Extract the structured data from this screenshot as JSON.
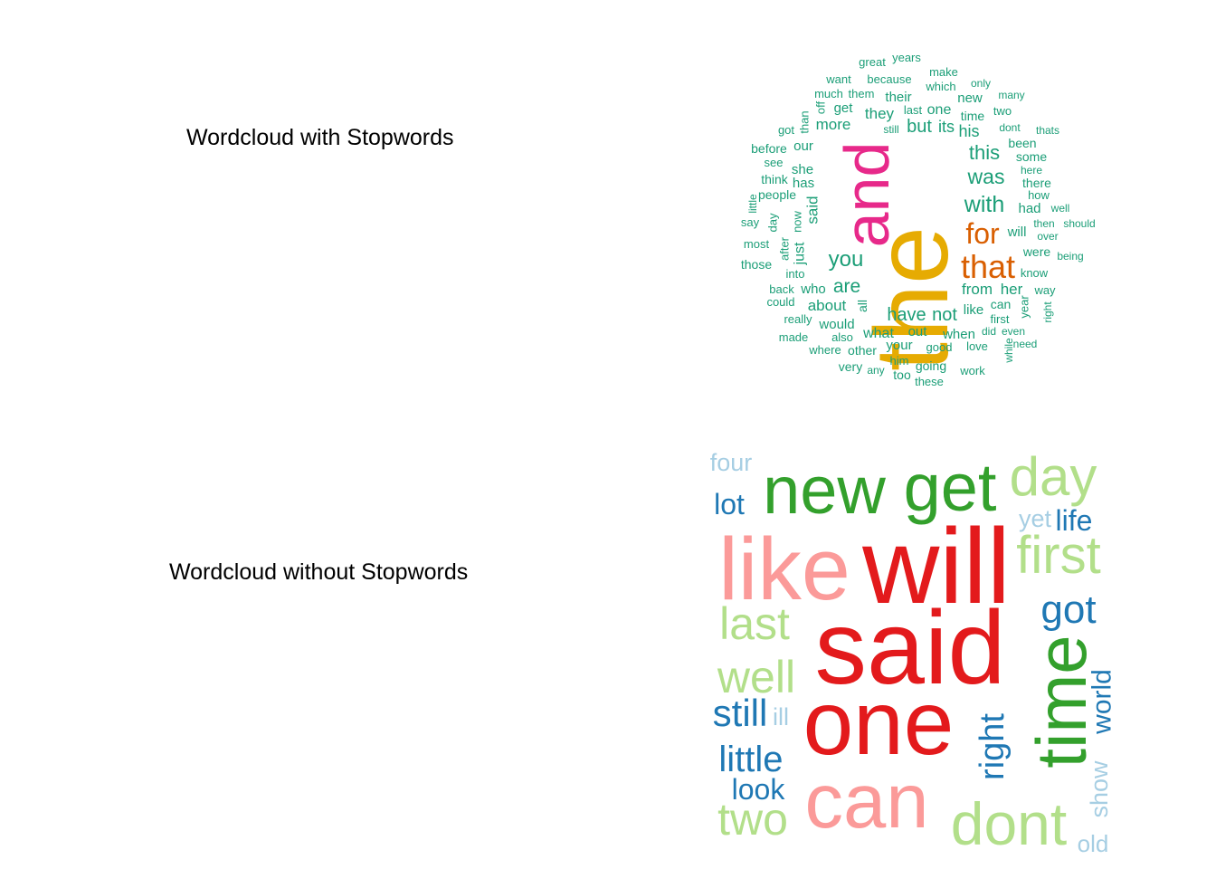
{
  "panels": [
    {
      "title": "Wordcloud with Stopwords",
      "words": [
        {
          "text": "the",
          "color": "#E6AB02"
        },
        {
          "text": "and",
          "color": "#E7298A"
        },
        {
          "text": "that",
          "color": "#D95F02"
        },
        {
          "text": "for",
          "color": "#D95F02"
        },
        {
          "text": "with",
          "color": "#1B9E77"
        },
        {
          "text": "was",
          "color": "#1B9E77"
        },
        {
          "text": "this",
          "color": "#1B9E77"
        },
        {
          "text": "you",
          "color": "#1B9E77"
        },
        {
          "text": "are",
          "color": "#1B9E77"
        },
        {
          "text": "have",
          "color": "#1B9E77"
        },
        {
          "text": "not",
          "color": "#1B9E77"
        },
        {
          "text": "from",
          "color": "#1B9E77"
        },
        {
          "text": "her",
          "color": "#1B9E77"
        },
        {
          "text": "but",
          "color": "#1B9E77"
        },
        {
          "text": "its",
          "color": "#1B9E77"
        },
        {
          "text": "his",
          "color": "#1B9E77"
        },
        {
          "text": "more",
          "color": "#1B9E77"
        },
        {
          "text": "they",
          "color": "#1B9E77"
        },
        {
          "text": "one",
          "color": "#1B9E77"
        },
        {
          "text": "will",
          "color": "#1B9E77"
        },
        {
          "text": "what",
          "color": "#1B9E77"
        },
        {
          "text": "out",
          "color": "#1B9E77"
        },
        {
          "text": "when",
          "color": "#1B9E77"
        },
        {
          "text": "about",
          "color": "#1B9E77"
        },
        {
          "text": "would",
          "color": "#1B9E77"
        },
        {
          "text": "your",
          "color": "#1B9E77"
        },
        {
          "text": "who",
          "color": "#1B9E77"
        },
        {
          "text": "she",
          "color": "#1B9E77"
        },
        {
          "text": "has",
          "color": "#1B9E77"
        },
        {
          "text": "our",
          "color": "#1B9E77"
        },
        {
          "text": "get",
          "color": "#1B9E77"
        },
        {
          "text": "their",
          "color": "#1B9E77"
        },
        {
          "text": "them",
          "color": "#1B9E77"
        },
        {
          "text": "some",
          "color": "#1B9E77"
        },
        {
          "text": "there",
          "color": "#1B9E77"
        },
        {
          "text": "been",
          "color": "#1B9E77"
        },
        {
          "text": "had",
          "color": "#1B9E77"
        },
        {
          "text": "were",
          "color": "#1B9E77"
        },
        {
          "text": "can",
          "color": "#1B9E77"
        },
        {
          "text": "like",
          "color": "#1B9E77"
        },
        {
          "text": "time",
          "color": "#1B9E77"
        },
        {
          "text": "new",
          "color": "#1B9E77"
        },
        {
          "text": "which",
          "color": "#1B9E77"
        },
        {
          "text": "make",
          "color": "#1B9E77"
        },
        {
          "text": "because",
          "color": "#1B9E77"
        },
        {
          "text": "great",
          "color": "#1B9E77"
        },
        {
          "text": "years",
          "color": "#1B9E77"
        },
        {
          "text": "only",
          "color": "#1B9E77"
        },
        {
          "text": "many",
          "color": "#1B9E77"
        },
        {
          "text": "two",
          "color": "#1B9E77"
        },
        {
          "text": "dont",
          "color": "#1B9E77"
        },
        {
          "text": "thats",
          "color": "#1B9E77"
        },
        {
          "text": "here",
          "color": "#1B9E77"
        },
        {
          "text": "how",
          "color": "#1B9E77"
        },
        {
          "text": "well",
          "color": "#1B9E77"
        },
        {
          "text": "then",
          "color": "#1B9E77"
        },
        {
          "text": "should",
          "color": "#1B9E77"
        },
        {
          "text": "over",
          "color": "#1B9E77"
        },
        {
          "text": "being",
          "color": "#1B9E77"
        },
        {
          "text": "know",
          "color": "#1B9E77"
        },
        {
          "text": "way",
          "color": "#1B9E77"
        },
        {
          "text": "first",
          "color": "#1B9E77"
        },
        {
          "text": "even",
          "color": "#1B9E77"
        },
        {
          "text": "did",
          "color": "#1B9E77"
        },
        {
          "text": "need",
          "color": "#1B9E77"
        },
        {
          "text": "love",
          "color": "#1B9E77"
        },
        {
          "text": "good",
          "color": "#1B9E77"
        },
        {
          "text": "going",
          "color": "#1B9E77"
        },
        {
          "text": "work",
          "color": "#1B9E77"
        },
        {
          "text": "these",
          "color": "#1B9E77"
        },
        {
          "text": "too",
          "color": "#1B9E77"
        },
        {
          "text": "him",
          "color": "#1B9E77"
        },
        {
          "text": "any",
          "color": "#1B9E77"
        },
        {
          "text": "very",
          "color": "#1B9E77"
        },
        {
          "text": "other",
          "color": "#1B9E77"
        },
        {
          "text": "where",
          "color": "#1B9E77"
        },
        {
          "text": "also",
          "color": "#1B9E77"
        },
        {
          "text": "made",
          "color": "#1B9E77"
        },
        {
          "text": "really",
          "color": "#1B9E77"
        },
        {
          "text": "could",
          "color": "#1B9E77"
        },
        {
          "text": "back",
          "color": "#1B9E77"
        },
        {
          "text": "into",
          "color": "#1B9E77"
        },
        {
          "text": "those",
          "color": "#1B9E77"
        },
        {
          "text": "most",
          "color": "#1B9E77"
        },
        {
          "text": "say",
          "color": "#1B9E77"
        },
        {
          "text": "people",
          "color": "#1B9E77"
        },
        {
          "text": "think",
          "color": "#1B9E77"
        },
        {
          "text": "see",
          "color": "#1B9E77"
        },
        {
          "text": "before",
          "color": "#1B9E77"
        },
        {
          "text": "got",
          "color": "#1B9E77"
        },
        {
          "text": "much",
          "color": "#1B9E77"
        },
        {
          "text": "want",
          "color": "#1B9E77"
        },
        {
          "text": "last",
          "color": "#1B9E77"
        },
        {
          "text": "still",
          "color": "#1B9E77"
        },
        {
          "text": "said",
          "color": "#1B9E77"
        },
        {
          "text": "just",
          "color": "#1B9E77"
        },
        {
          "text": "now",
          "color": "#1B9E77"
        },
        {
          "text": "day",
          "color": "#1B9E77"
        },
        {
          "text": "after",
          "color": "#1B9E77"
        },
        {
          "text": "little",
          "color": "#1B9E77"
        },
        {
          "text": "than",
          "color": "#1B9E77"
        },
        {
          "text": "off",
          "color": "#1B9E77"
        },
        {
          "text": "all",
          "color": "#1B9E77"
        },
        {
          "text": "year",
          "color": "#1B9E77"
        },
        {
          "text": "right",
          "color": "#1B9E77"
        },
        {
          "text": "while",
          "color": "#1B9E77"
        }
      ]
    },
    {
      "title": "Wordcloud without Stopwords",
      "words": [
        {
          "text": "said",
          "color": "#E31A1C"
        },
        {
          "text": "will",
          "color": "#E31A1C"
        },
        {
          "text": "one",
          "color": "#E31A1C"
        },
        {
          "text": "like",
          "color": "#FB9A99"
        },
        {
          "text": "can",
          "color": "#FB9A99"
        },
        {
          "text": "new",
          "color": "#33A02C"
        },
        {
          "text": "get",
          "color": "#33A02C"
        },
        {
          "text": "time",
          "color": "#33A02C"
        },
        {
          "text": "day",
          "color": "#B2DF8A"
        },
        {
          "text": "first",
          "color": "#B2DF8A"
        },
        {
          "text": "last",
          "color": "#B2DF8A"
        },
        {
          "text": "well",
          "color": "#B2DF8A"
        },
        {
          "text": "dont",
          "color": "#B2DF8A"
        },
        {
          "text": "two",
          "color": "#B2DF8A"
        },
        {
          "text": "got",
          "color": "#1F78B4"
        },
        {
          "text": "right",
          "color": "#1F78B4"
        },
        {
          "text": "still",
          "color": "#1F78B4"
        },
        {
          "text": "little",
          "color": "#1F78B4"
        },
        {
          "text": "look",
          "color": "#1F78B4"
        },
        {
          "text": "lot",
          "color": "#1F78B4"
        },
        {
          "text": "life",
          "color": "#1F78B4"
        },
        {
          "text": "world",
          "color": "#1F78B4"
        },
        {
          "text": "four",
          "color": "#A6CEE3"
        },
        {
          "text": "yet",
          "color": "#A6CEE3"
        },
        {
          "text": "ill",
          "color": "#A6CEE3"
        },
        {
          "text": "show",
          "color": "#A6CEE3"
        },
        {
          "text": "old",
          "color": "#A6CEE3"
        }
      ]
    }
  ]
}
